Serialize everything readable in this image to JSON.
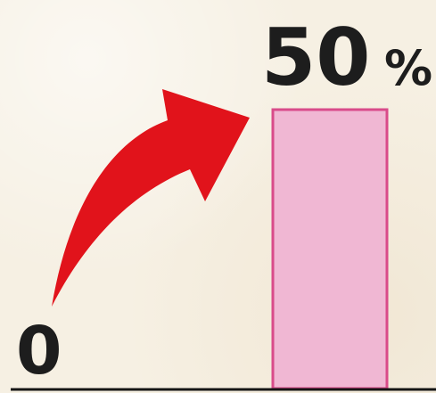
{
  "chart_data": {
    "type": "bar",
    "categories": [
      "",
      ""
    ],
    "values": [
      0,
      50
    ],
    "value_labels": {
      "start": "0",
      "end_number": "50",
      "end_unit": "%"
    },
    "ylim": [
      0,
      50
    ],
    "grid": false,
    "legend": "none",
    "annotations": [
      "increase-arrow"
    ],
    "colors": {
      "bar_fill": "#f0b7d3",
      "bar_stroke": "#d94b8a",
      "arrow": "#e1131b",
      "text": "#1d1d1d",
      "baseline": "#151515"
    }
  }
}
